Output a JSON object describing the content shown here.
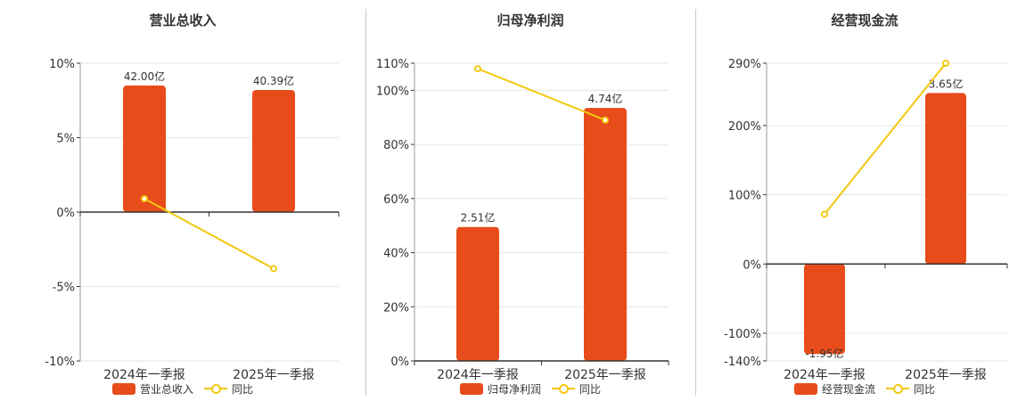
{
  "colors": {
    "bar": "#e84c1a",
    "line": "#f2c80f",
    "grid": "#e6e6e6",
    "axis": "#333333"
  },
  "chart_data": [
    {
      "type": "bar",
      "title": "营业总收入",
      "categories": [
        "2024年一季报",
        "2025年一季报"
      ],
      "bar_labels": [
        "42.00亿",
        "40.39亿"
      ],
      "bar_values": [
        42.0,
        40.39
      ],
      "bar_unit": "亿",
      "yoy_values": [
        0.9,
        -3.8
      ],
      "ylim": [
        -10,
        10
      ],
      "yticks": [
        10,
        5,
        0,
        -5,
        -10
      ],
      "ytick_labels": [
        "10%",
        "5%",
        "0%",
        "-5%",
        "-10%"
      ],
      "bar_display_pct": [
        8.5,
        8.2
      ],
      "legend": {
        "bar": "营业总收入",
        "line": "同比"
      }
    },
    {
      "type": "bar",
      "title": "归母净利润",
      "categories": [
        "2024年一季报",
        "2025年一季报"
      ],
      "bar_labels": [
        "2.51亿",
        "4.74亿"
      ],
      "bar_values": [
        2.51,
        4.74
      ],
      "bar_unit": "亿",
      "yoy_values": [
        108,
        89
      ],
      "ylim": [
        0,
        110
      ],
      "yticks": [
        110,
        100,
        80,
        60,
        40,
        20,
        0
      ],
      "ytick_labels": [
        "110%",
        "100%",
        "80%",
        "60%",
        "40%",
        "20%",
        "0%"
      ],
      "bar_display_pct": [
        49.5,
        93.5
      ],
      "legend": {
        "bar": "归母净利润",
        "line": "同比"
      }
    },
    {
      "type": "bar",
      "title": "经营现金流",
      "categories": [
        "2024年一季报",
        "2025年一季报"
      ],
      "bar_labels": [
        "-1.95亿",
        "3.65亿"
      ],
      "bar_values": [
        -1.95,
        3.65
      ],
      "bar_unit": "亿",
      "yoy_values": [
        72,
        290
      ],
      "ylim": [
        -140,
        290
      ],
      "yticks": [
        290,
        200,
        100,
        0,
        -100,
        -140
      ],
      "ytick_labels": [
        "290%",
        "200%",
        "100%",
        "0%",
        "-100%",
        "-140%"
      ],
      "bar_display_pct": [
        -130,
        247
      ],
      "legend": {
        "bar": "经营现金流",
        "line": "同比"
      }
    }
  ]
}
